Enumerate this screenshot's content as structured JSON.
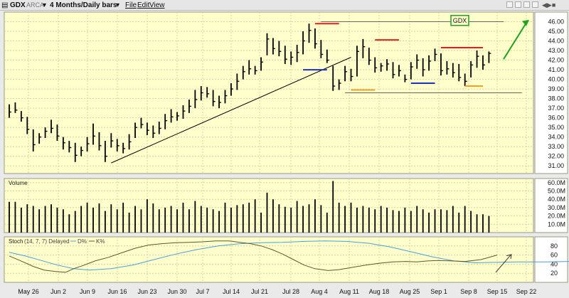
{
  "toolbar": {
    "symbol": "GDX",
    "exchange": "ARCA",
    "period": "4 Months/Daily bars",
    "menu": [
      "File",
      "Edit",
      "View"
    ]
  },
  "colors": {
    "panel_bg": "#ffffcc",
    "grid": "#d2d2aa",
    "bars": "#000000",
    "trendline": "#000000",
    "red_marks": "#e02020",
    "blue_marks": "#1e2fbf",
    "orange_marks": "#f0a020",
    "arrow": "#1fa31f",
    "label_box": "#2e9e2e",
    "d_line": "#4aa0d8",
    "k_line": "#5a5a2a"
  },
  "annotation": {
    "box_label": "GDX"
  },
  "panels": {
    "volume": {
      "label": "Volume"
    },
    "stoch": {
      "label": "Stoch",
      "params": "(14, 7, 7) Delayed",
      "legend": [
        "D%",
        "K%"
      ]
    }
  },
  "chart_data": {
    "type": "ohlc",
    "title": "GDX ARCA 4 Months/Daily bars",
    "x_ticks": [
      "May 26",
      "Jun 2",
      "Jun 9",
      "Jun 16",
      "Jun 23",
      "Jun 30",
      "Jul 7",
      "Jul 14",
      "Jul 21",
      "Jul 28",
      "Aug 4",
      "Aug 11",
      "Aug 18",
      "Aug 25",
      "Sep 1",
      "Sep 8",
      "Sep 15",
      "Sep 22"
    ],
    "price": {
      "ylim": [
        30.2,
        47.0
      ],
      "ticks": [
        31,
        32,
        33,
        34,
        35,
        36,
        37,
        38,
        39,
        40,
        41,
        42,
        43,
        44,
        45,
        46
      ],
      "tick_labels": [
        "31.00",
        "32.00",
        "33.00",
        "34.00",
        "35.00",
        "36.00",
        "37.00",
        "38.00",
        "39.00",
        "40.00",
        "41.00",
        "42.00",
        "43.00",
        "44.00",
        "45.00",
        "46.00"
      ],
      "bars": [
        {
          "h": 37.4,
          "l": 36.0,
          "c": 36.6
        },
        {
          "h": 37.6,
          "l": 36.5,
          "c": 36.8
        },
        {
          "h": 36.7,
          "l": 35.6,
          "c": 36.0
        },
        {
          "h": 36.1,
          "l": 34.3,
          "c": 34.8
        },
        {
          "h": 34.8,
          "l": 32.5,
          "c": 33.2
        },
        {
          "h": 34.4,
          "l": 33.3,
          "c": 34.0
        },
        {
          "h": 35.0,
          "l": 33.9,
          "c": 34.6
        },
        {
          "h": 35.8,
          "l": 34.4,
          "c": 34.9
        },
        {
          "h": 35.3,
          "l": 33.6,
          "c": 34.1
        },
        {
          "h": 34.0,
          "l": 32.7,
          "c": 33.4
        },
        {
          "h": 33.6,
          "l": 32.4,
          "c": 32.9
        },
        {
          "h": 33.4,
          "l": 31.4,
          "c": 32.1
        },
        {
          "h": 33.0,
          "l": 32.0,
          "c": 32.6
        },
        {
          "h": 34.0,
          "l": 32.5,
          "c": 33.3
        },
        {
          "h": 35.4,
          "l": 33.2,
          "c": 34.1
        },
        {
          "h": 34.5,
          "l": 32.6,
          "c": 33.1
        },
        {
          "h": 33.6,
          "l": 31.4,
          "c": 32.0
        },
        {
          "h": 34.4,
          "l": 32.9,
          "c": 33.6
        },
        {
          "h": 33.8,
          "l": 32.5,
          "c": 33.1
        },
        {
          "h": 33.4,
          "l": 32.3,
          "c": 32.8
        },
        {
          "h": 34.3,
          "l": 32.7,
          "c": 33.5
        },
        {
          "h": 35.5,
          "l": 33.9,
          "c": 35.0
        },
        {
          "h": 36.0,
          "l": 34.9,
          "c": 35.3
        },
        {
          "h": 35.5,
          "l": 34.2,
          "c": 34.7
        },
        {
          "h": 35.2,
          "l": 33.9,
          "c": 34.4
        },
        {
          "h": 35.6,
          "l": 34.3,
          "c": 34.9
        },
        {
          "h": 36.4,
          "l": 34.8,
          "c": 35.7
        },
        {
          "h": 36.9,
          "l": 35.5,
          "c": 36.1
        },
        {
          "h": 36.6,
          "l": 35.7,
          "c": 36.2
        },
        {
          "h": 37.3,
          "l": 35.9,
          "c": 36.7
        },
        {
          "h": 37.9,
          "l": 36.5,
          "c": 37.2
        },
        {
          "h": 38.9,
          "l": 37.0,
          "c": 37.9
        },
        {
          "h": 39.3,
          "l": 37.8,
          "c": 38.6
        },
        {
          "h": 39.2,
          "l": 38.1,
          "c": 38.5
        },
        {
          "h": 38.9,
          "l": 37.2,
          "c": 37.7
        },
        {
          "h": 38.3,
          "l": 37.0,
          "c": 37.6
        },
        {
          "h": 38.9,
          "l": 37.5,
          "c": 38.3
        },
        {
          "h": 39.6,
          "l": 38.3,
          "c": 39.0
        },
        {
          "h": 40.6,
          "l": 38.9,
          "c": 39.8
        },
        {
          "h": 41.4,
          "l": 40.0,
          "c": 40.8
        },
        {
          "h": 42.0,
          "l": 40.5,
          "c": 41.1
        },
        {
          "h": 41.4,
          "l": 40.5,
          "c": 40.9
        },
        {
          "h": 42.3,
          "l": 40.9,
          "c": 41.8
        },
        {
          "h": 44.8,
          "l": 42.5,
          "c": 44.2
        },
        {
          "h": 44.3,
          "l": 42.6,
          "c": 43.2
        },
        {
          "h": 44.0,
          "l": 42.4,
          "c": 42.9
        },
        {
          "h": 43.5,
          "l": 41.6,
          "c": 42.1
        },
        {
          "h": 42.9,
          "l": 41.5,
          "c": 42.3
        },
        {
          "h": 43.6,
          "l": 41.8,
          "c": 42.8
        },
        {
          "h": 45.0,
          "l": 42.6,
          "c": 44.0
        },
        {
          "h": 45.8,
          "l": 43.8,
          "c": 45.1
        },
        {
          "h": 45.3,
          "l": 43.2,
          "c": 43.7
        },
        {
          "h": 44.1,
          "l": 42.2,
          "c": 42.6
        },
        {
          "h": 43.1,
          "l": 41.7,
          "c": 42.0
        },
        {
          "h": 41.4,
          "l": 38.8,
          "c": 39.3
        },
        {
          "h": 40.0,
          "l": 38.9,
          "c": 39.6
        },
        {
          "h": 41.4,
          "l": 39.8,
          "c": 40.8
        },
        {
          "h": 41.1,
          "l": 39.8,
          "c": 40.3
        },
        {
          "h": 43.5,
          "l": 40.3,
          "c": 42.9
        },
        {
          "h": 44.2,
          "l": 42.2,
          "c": 43.4
        },
        {
          "h": 43.3,
          "l": 41.5,
          "c": 42.0
        },
        {
          "h": 42.3,
          "l": 40.7,
          "c": 41.2
        },
        {
          "h": 41.7,
          "l": 40.8,
          "c": 41.4
        },
        {
          "h": 42.1,
          "l": 40.9,
          "c": 41.6
        },
        {
          "h": 41.8,
          "l": 40.1,
          "c": 40.5
        },
        {
          "h": 41.5,
          "l": 40.3,
          "c": 40.9
        },
        {
          "h": 40.5,
          "l": 39.7,
          "c": 40.0
        },
        {
          "h": 41.8,
          "l": 40.0,
          "c": 41.3
        },
        {
          "h": 42.6,
          "l": 41.1,
          "c": 42.0
        },
        {
          "h": 42.2,
          "l": 40.3,
          "c": 41.0
        },
        {
          "h": 42.5,
          "l": 40.9,
          "c": 41.9
        },
        {
          "h": 43.2,
          "l": 41.9,
          "c": 42.6
        },
        {
          "h": 42.7,
          "l": 40.4,
          "c": 40.9
        },
        {
          "h": 41.9,
          "l": 40.5,
          "c": 41.1
        },
        {
          "h": 41.7,
          "l": 40.2,
          "c": 40.7
        },
        {
          "h": 41.6,
          "l": 39.8,
          "c": 40.2
        },
        {
          "h": 40.6,
          "l": 39.3,
          "c": 39.8
        },
        {
          "h": 41.9,
          "l": 40.2,
          "c": 41.5
        },
        {
          "h": 43.0,
          "l": 41.2,
          "c": 42.4
        },
        {
          "h": 42.5,
          "l": 41.0,
          "c": 41.5
        },
        {
          "h": 42.9,
          "l": 41.7,
          "c": 42.7
        }
      ]
    },
    "volume": {
      "ylim": [
        0,
        65
      ],
      "ticks": [
        10,
        20,
        30,
        40,
        50,
        60
      ],
      "tick_labels": [
        "10.0M",
        "20.0M",
        "30.0M",
        "40.0M",
        "50.0M",
        "60.0M"
      ],
      "values": [
        37,
        37,
        30,
        34,
        32,
        28,
        32,
        34,
        30,
        28,
        22,
        26,
        32,
        36,
        30,
        35,
        26,
        34,
        28,
        36,
        24,
        32,
        28,
        40,
        35,
        28,
        30,
        32,
        28,
        36,
        28,
        38,
        32,
        30,
        28,
        26,
        36,
        30,
        33,
        34,
        36,
        40,
        24,
        48,
        40,
        34,
        31,
        30,
        38,
        32,
        34,
        40,
        33,
        24,
        62,
        36,
        32,
        36,
        30,
        32,
        30,
        28,
        32,
        30,
        27,
        26,
        30,
        26,
        32,
        28,
        24,
        28,
        28,
        27,
        32,
        24,
        32,
        26,
        22,
        22,
        20
      ]
    },
    "stoch": {
      "ylim": [
        0,
        100
      ],
      "ticks": [
        20,
        40,
        60,
        80
      ],
      "tick_labels": [
        "20",
        "40",
        "60",
        "80"
      ],
      "k_points": [
        [
          0,
          58
        ],
        [
          4,
          48
        ],
        [
          9,
          35
        ],
        [
          13,
          27
        ],
        [
          17,
          24
        ],
        [
          21,
          22
        ],
        [
          24,
          30
        ],
        [
          28,
          38
        ],
        [
          32,
          47
        ],
        [
          37,
          55
        ],
        [
          42,
          65
        ],
        [
          47,
          75
        ],
        [
          52,
          82
        ],
        [
          57,
          85
        ],
        [
          62,
          87
        ],
        [
          67,
          88
        ],
        [
          72,
          89
        ],
        [
          77,
          91
        ],
        [
          82,
          91
        ],
        [
          86,
          88
        ],
        [
          90,
          85
        ],
        [
          94,
          80
        ],
        [
          98,
          72
        ],
        [
          102,
          62
        ],
        [
          106,
          50
        ],
        [
          110,
          38
        ],
        [
          114,
          30
        ],
        [
          119,
          26
        ],
        [
          123,
          28
        ],
        [
          128,
          33
        ],
        [
          133,
          38
        ],
        [
          138,
          42
        ],
        [
          143,
          45
        ],
        [
          148,
          46
        ],
        [
          152,
          45
        ],
        [
          156,
          47
        ],
        [
          160,
          48
        ],
        [
          165,
          47
        ],
        [
          170,
          46
        ],
        [
          176,
          50
        ],
        [
          182,
          60
        ]
      ],
      "d_points": [
        [
          0,
          66
        ],
        [
          6,
          58
        ],
        [
          12,
          48
        ],
        [
          18,
          38
        ],
        [
          24,
          30
        ],
        [
          30,
          27
        ],
        [
          38,
          30
        ],
        [
          46,
          38
        ],
        [
          54,
          50
        ],
        [
          62,
          62
        ],
        [
          70,
          72
        ],
        [
          78,
          80
        ],
        [
          86,
          85
        ],
        [
          94,
          87
        ],
        [
          102,
          88
        ],
        [
          110,
          90
        ],
        [
          118,
          91
        ],
        [
          126,
          90
        ],
        [
          134,
          86
        ],
        [
          142,
          78
        ],
        [
          150,
          67
        ],
        [
          158,
          56
        ],
        [
          166,
          47
        ],
        [
          174,
          43
        ],
        [
          182,
          44
        ],
        [
          190,
          45
        ],
        [
          200,
          45
        ],
        [
          210,
          46
        ]
      ]
    }
  }
}
